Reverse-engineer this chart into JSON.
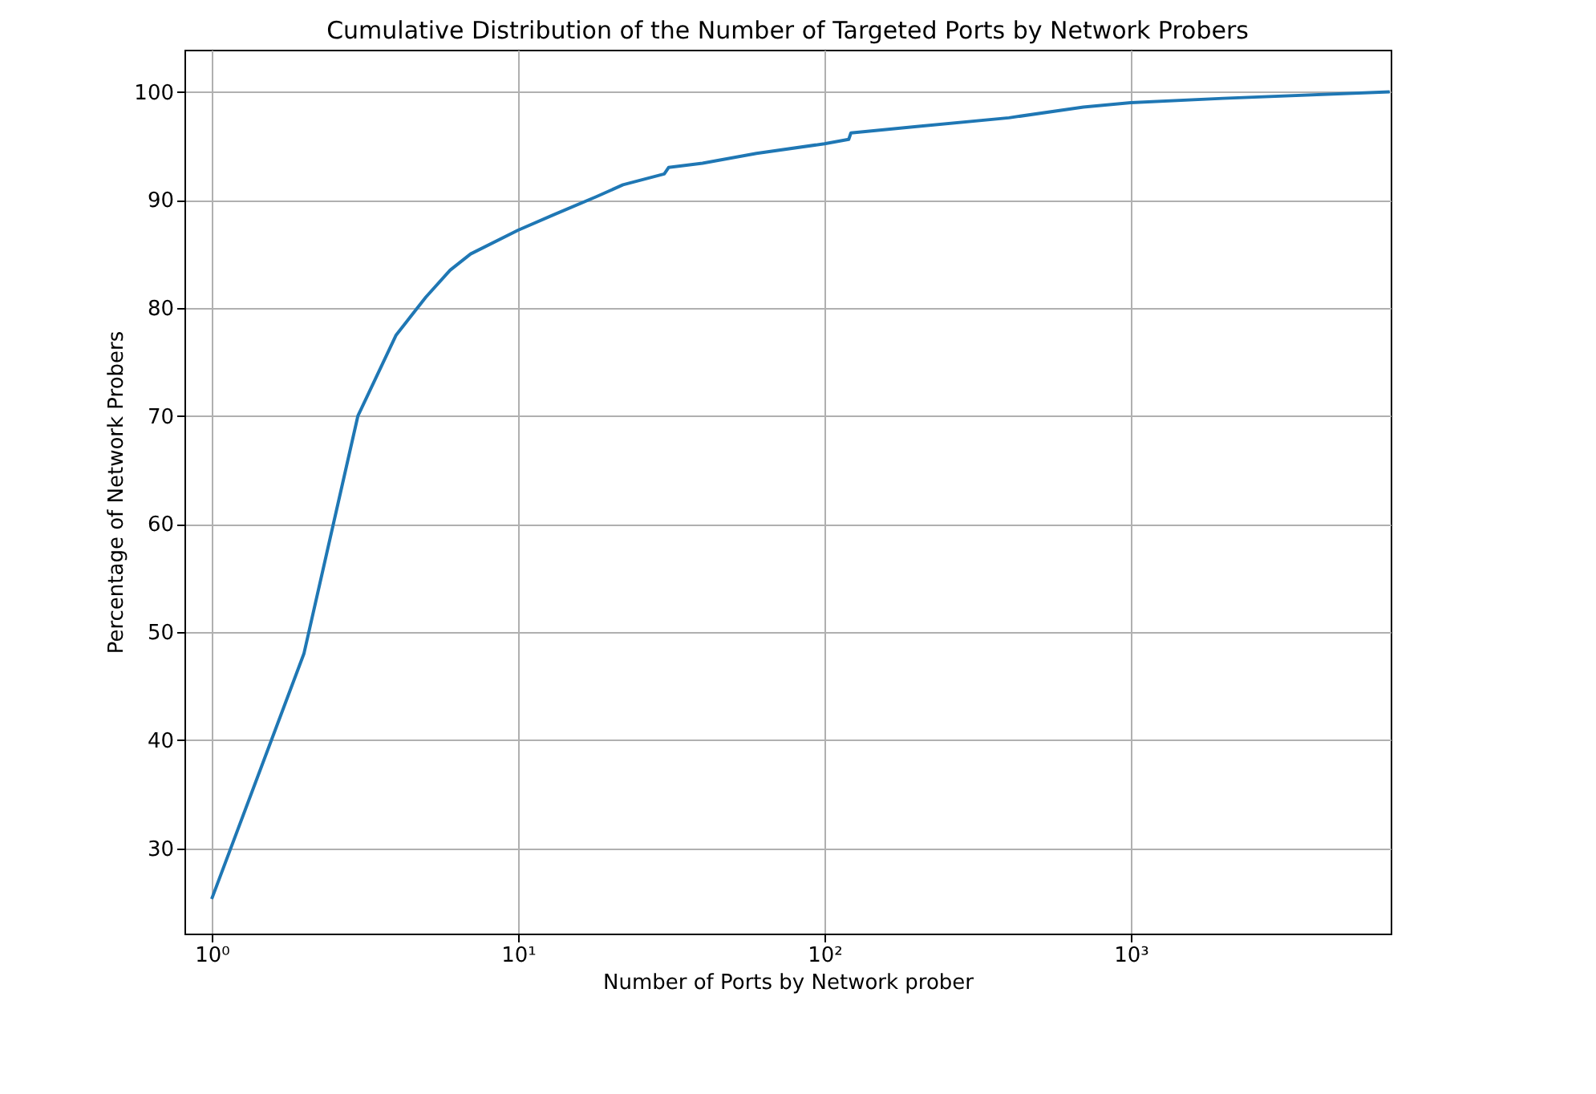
{
  "chart_data": {
    "type": "line",
    "title": "Cumulative Distribution of the Number of Targeted Ports by Network Probers",
    "xlabel": "Number of Ports by Network prober",
    "ylabel": "Percentage of Network Probers",
    "x": [
      1,
      2,
      3,
      4,
      5,
      6,
      7,
      10,
      13,
      18,
      22,
      30,
      31,
      40,
      60,
      100,
      120,
      122,
      200,
      400,
      700,
      1000,
      2000,
      7000
    ],
    "series": [
      {
        "color": "#1f77b4",
        "values": [
          25.3,
          48,
          70,
          77.5,
          81,
          83.5,
          85,
          87.2,
          88.6,
          90.3,
          91.4,
          92.4,
          93,
          93.4,
          94.3,
          95.2,
          95.6,
          96.2,
          96.8,
          97.6,
          98.6,
          99,
          99.4,
          100
        ]
      }
    ],
    "log": "x",
    "xlim": [
      0.815,
      7050
    ],
    "ylim": [
      22.1,
      103.9
    ],
    "xticks": [
      {
        "value": 1,
        "label": "10⁰"
      },
      {
        "value": 10,
        "label": "10¹"
      },
      {
        "value": 100,
        "label": "10²"
      },
      {
        "value": 1000,
        "label": "10³"
      }
    ],
    "yticks": [
      30,
      40,
      50,
      60,
      70,
      80,
      90,
      100
    ],
    "grid": true,
    "line_style": "solid",
    "marker": "none"
  }
}
